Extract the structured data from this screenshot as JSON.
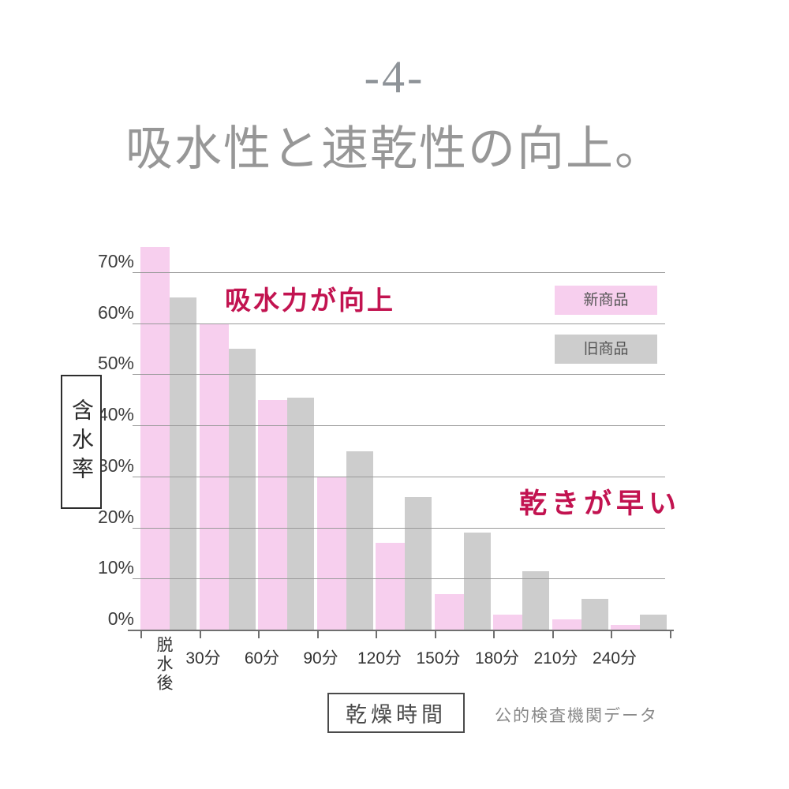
{
  "header": {
    "page_number": "-4-",
    "title": "吸水性と速乾性の向上。"
  },
  "chart_data": {
    "type": "bar",
    "title": "",
    "categories": [
      "脱水後",
      "30分",
      "60分",
      "90分",
      "120分",
      "150分",
      "180分",
      "210分",
      "240分"
    ],
    "series": [
      {
        "name": "新商品",
        "color": "#f7cfee",
        "values": [
          75,
          60,
          45,
          30,
          17,
          7,
          3,
          2,
          1
        ]
      },
      {
        "name": "旧商品",
        "color": "#cdcdcd",
        "values": [
          65,
          55,
          45.5,
          35,
          26,
          19,
          11.5,
          6,
          3
        ]
      }
    ],
    "unit": "%",
    "ylabel": "含水率",
    "xlabel": "乾燥時間",
    "ylim": [
      0,
      75
    ],
    "yticks": [
      "0%",
      "10%",
      "20%",
      "30%",
      "40%",
      "50%",
      "60%",
      "70%"
    ],
    "grid": true,
    "legend_position": "top-right",
    "annotations": [
      {
        "text": "吸水力が向上",
        "color": "#c21350"
      },
      {
        "text": "乾きが早い",
        "color": "#c21350"
      }
    ],
    "source_note": "公的検査機関データ"
  }
}
